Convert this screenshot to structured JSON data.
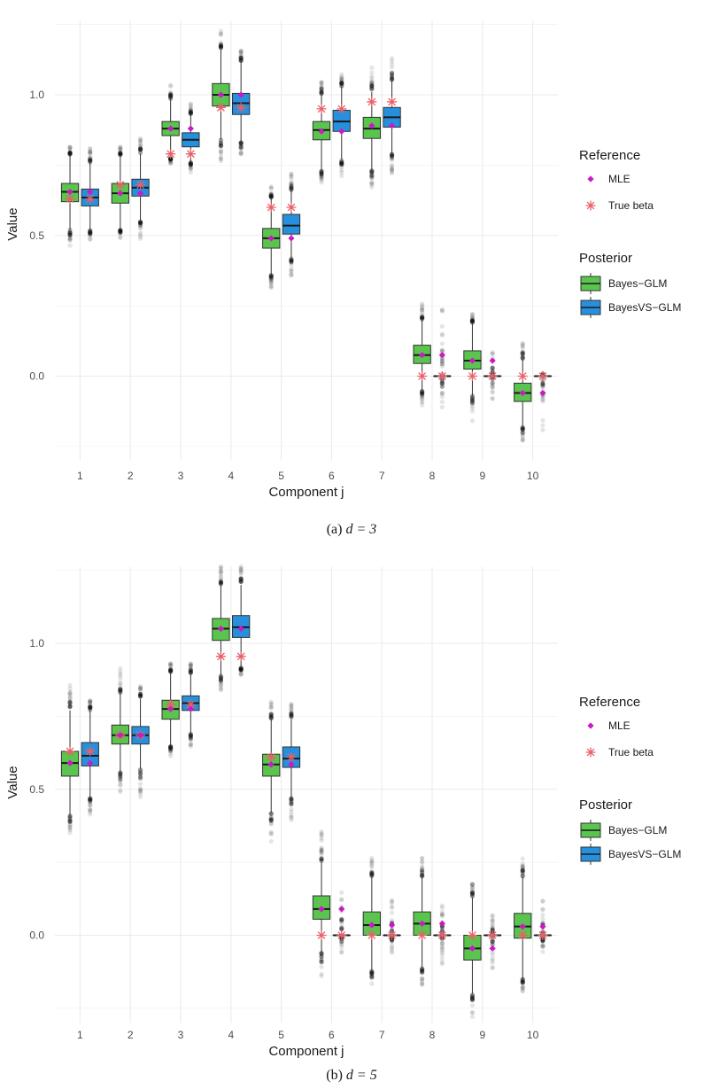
{
  "colors": {
    "bayes_glm": "#5ac44e",
    "bayesvs_glm": "#2790de",
    "mle": "#cc18c6",
    "true_beta": "#e8606a",
    "grid": "#ebebeb",
    "outlier": "#000000"
  },
  "legend": {
    "reference_title": "Reference",
    "mle_label": "MLE",
    "true_beta_label": "True beta",
    "posterior_title": "Posterior",
    "bayes_glm_label": "Bayes−GLM",
    "bayesvs_glm_label": "BayesVS−GLM"
  },
  "chart_data": [
    {
      "type": "boxplot",
      "caption_prefix": "(a) ",
      "caption_math": "d = 3",
      "xlabel": "Component j",
      "ylabel": "Value",
      "categories": [
        "1",
        "2",
        "3",
        "4",
        "5",
        "6",
        "7",
        "8",
        "9",
        "10"
      ],
      "ylim": [
        -0.3,
        1.25
      ],
      "yticks": [
        0.0,
        0.5,
        1.0
      ],
      "ytick_labels": [
        "0.0",
        "0.5",
        "1.0"
      ],
      "grid": true,
      "legend_position": "right",
      "series": [
        {
          "name": "Bayes−GLM",
          "boxes": [
            {
              "q1": 0.62,
              "median": 0.655,
              "q3": 0.685,
              "wlo": 0.52,
              "whi": 0.785,
              "min": 0.455,
              "max": 0.815
            },
            {
              "q1": 0.615,
              "median": 0.65,
              "q3": 0.685,
              "wlo": 0.52,
              "whi": 0.785,
              "min": 0.49,
              "max": 0.815
            },
            {
              "q1": 0.855,
              "median": 0.88,
              "q3": 0.905,
              "wlo": 0.775,
              "whi": 0.985,
              "min": 0.755,
              "max": 1.035
            },
            {
              "q1": 0.96,
              "median": 1.0,
              "q3": 1.04,
              "wlo": 0.84,
              "whi": 1.16,
              "min": 0.75,
              "max": 1.24
            },
            {
              "q1": 0.455,
              "median": 0.49,
              "q3": 0.525,
              "wlo": 0.36,
              "whi": 0.63,
              "min": 0.31,
              "max": 0.68
            },
            {
              "q1": 0.84,
              "median": 0.875,
              "q3": 0.905,
              "wlo": 0.73,
              "whi": 1.0,
              "min": 0.68,
              "max": 1.065
            },
            {
              "q1": 0.845,
              "median": 0.88,
              "q3": 0.92,
              "wlo": 0.73,
              "whi": 1.01,
              "min": 0.67,
              "max": 1.1
            },
            {
              "q1": 0.045,
              "median": 0.075,
              "q3": 0.11,
              "wlo": -0.05,
              "whi": 0.2,
              "min": -0.11,
              "max": 0.275
            },
            {
              "q1": 0.025,
              "median": 0.055,
              "q3": 0.09,
              "wlo": -0.07,
              "whi": 0.19,
              "min": -0.16,
              "max": 0.225
            },
            {
              "q1": -0.09,
              "median": -0.06,
              "q3": -0.025,
              "wlo": -0.18,
              "whi": 0.06,
              "min": -0.24,
              "max": 0.13
            }
          ]
        },
        {
          "name": "BayesVS−GLM",
          "boxes": [
            {
              "q1": 0.605,
              "median": 0.635,
              "q3": 0.665,
              "wlo": 0.52,
              "whi": 0.76,
              "min": 0.48,
              "max": 0.81
            },
            {
              "q1": 0.64,
              "median": 0.67,
              "q3": 0.7,
              "wlo": 0.55,
              "whi": 0.79,
              "min": 0.47,
              "max": 0.85
            },
            {
              "q1": 0.815,
              "median": 0.84,
              "q3": 0.865,
              "wlo": 0.76,
              "whi": 0.93,
              "min": 0.72,
              "max": 0.97
            },
            {
              "q1": 0.93,
              "median": 0.97,
              "q3": 1.005,
              "wlo": 0.83,
              "whi": 1.12,
              "min": 0.78,
              "max": 1.16
            },
            {
              "q1": 0.505,
              "median": 0.535,
              "q3": 0.575,
              "wlo": 0.42,
              "whi": 0.66,
              "min": 0.355,
              "max": 0.72
            },
            {
              "q1": 0.87,
              "median": 0.905,
              "q3": 0.945,
              "wlo": 0.77,
              "whi": 1.03,
              "min": 0.71,
              "max": 1.08
            },
            {
              "q1": 0.885,
              "median": 0.92,
              "q3": 0.955,
              "wlo": 0.79,
              "whi": 1.05,
              "min": 0.72,
              "max": 1.13
            },
            {
              "q1": 0.0,
              "median": 0.0,
              "q3": 0.0,
              "wlo": 0.0,
              "whi": 0.0,
              "min": -0.12,
              "max": 0.26
            },
            {
              "q1": 0.0,
              "median": 0.0,
              "q3": 0.0,
              "wlo": 0.0,
              "whi": 0.0,
              "min": -0.09,
              "max": 0.085
            },
            {
              "q1": 0.0,
              "median": 0.0,
              "q3": 0.0,
              "wlo": 0.0,
              "whi": 0.0,
              "min": -0.2,
              "max": 0.01
            }
          ]
        }
      ],
      "reference": {
        "mle": [
          0.655,
          0.65,
          0.88,
          1.0,
          0.49,
          0.87,
          0.89,
          0.075,
          0.055,
          -0.06
        ],
        "true_beta": [
          0.63,
          0.68,
          0.79,
          0.955,
          0.6,
          0.95,
          0.975,
          0.0,
          0.0,
          0.0
        ]
      }
    },
    {
      "type": "boxplot",
      "caption_prefix": "(b) ",
      "caption_math": "d = 5",
      "xlabel": "Component j",
      "ylabel": "Value",
      "categories": [
        "1",
        "2",
        "3",
        "4",
        "5",
        "6",
        "7",
        "8",
        "9",
        "10"
      ],
      "ylim": [
        -0.3,
        1.25
      ],
      "yticks": [
        0.0,
        0.5,
        1.0
      ],
      "ytick_labels": [
        "0.0",
        "0.5",
        "1.0"
      ],
      "grid": true,
      "legend_position": "right",
      "series": [
        {
          "name": "Bayes−GLM",
          "boxes": [
            {
              "q1": 0.545,
              "median": 0.59,
              "q3": 0.63,
              "wlo": 0.41,
              "whi": 0.77,
              "min": 0.345,
              "max": 0.86
            },
            {
              "q1": 0.655,
              "median": 0.685,
              "q3": 0.72,
              "wlo": 0.56,
              "whi": 0.83,
              "min": 0.48,
              "max": 0.915
            },
            {
              "q1": 0.74,
              "median": 0.775,
              "q3": 0.805,
              "wlo": 0.65,
              "whi": 0.9,
              "min": 0.61,
              "max": 0.935
            },
            {
              "q1": 1.01,
              "median": 1.05,
              "q3": 1.085,
              "wlo": 0.89,
              "whi": 1.2,
              "min": 0.81,
              "max": 1.265
            },
            {
              "q1": 0.545,
              "median": 0.585,
              "q3": 0.62,
              "wlo": 0.42,
              "whi": 0.74,
              "min": 0.32,
              "max": 0.8
            },
            {
              "q1": 0.055,
              "median": 0.09,
              "q3": 0.135,
              "wlo": -0.06,
              "whi": 0.25,
              "min": -0.15,
              "max": 0.37
            },
            {
              "q1": 0.0,
              "median": 0.035,
              "q3": 0.08,
              "wlo": -0.12,
              "whi": 0.2,
              "min": -0.2,
              "max": 0.265
            },
            {
              "q1": 0.0,
              "median": 0.04,
              "q3": 0.08,
              "wlo": -0.11,
              "whi": 0.2,
              "min": -0.17,
              "max": 0.275
            },
            {
              "q1": -0.085,
              "median": -0.045,
              "q3": 0.0,
              "wlo": -0.2,
              "whi": 0.13,
              "min": -0.285,
              "max": 0.18
            },
            {
              "q1": -0.01,
              "median": 0.03,
              "q3": 0.075,
              "wlo": -0.15,
              "whi": 0.2,
              "min": -0.2,
              "max": 0.265
            }
          ]
        },
        {
          "name": "BayesVS−GLM",
          "boxes": [
            {
              "q1": 0.58,
              "median": 0.615,
              "q3": 0.66,
              "wlo": 0.47,
              "whi": 0.77,
              "min": 0.4,
              "max": 0.81
            },
            {
              "q1": 0.655,
              "median": 0.685,
              "q3": 0.715,
              "wlo": 0.57,
              "whi": 0.81,
              "min": 0.47,
              "max": 0.855
            },
            {
              "q1": 0.77,
              "median": 0.795,
              "q3": 0.82,
              "wlo": 0.69,
              "whi": 0.895,
              "min": 0.64,
              "max": 0.935
            },
            {
              "q1": 1.02,
              "median": 1.055,
              "q3": 1.095,
              "wlo": 0.92,
              "whi": 1.2,
              "min": 0.88,
              "max": 1.265
            },
            {
              "q1": 0.575,
              "median": 0.605,
              "q3": 0.645,
              "wlo": 0.47,
              "whi": 0.74,
              "min": 0.39,
              "max": 0.8
            },
            {
              "q1": 0.0,
              "median": 0.0,
              "q3": 0.0,
              "wlo": 0.0,
              "whi": 0.0,
              "min": -0.06,
              "max": 0.17
            },
            {
              "q1": 0.0,
              "median": 0.0,
              "q3": 0.0,
              "wlo": 0.0,
              "whi": 0.0,
              "min": -0.06,
              "max": 0.13
            },
            {
              "q1": 0.0,
              "median": 0.0,
              "q3": 0.0,
              "wlo": 0.0,
              "whi": 0.0,
              "min": -0.1,
              "max": 0.11
            },
            {
              "q1": 0.0,
              "median": 0.0,
              "q3": 0.0,
              "wlo": 0.0,
              "whi": 0.0,
              "min": -0.13,
              "max": 0.07
            },
            {
              "q1": 0.0,
              "median": 0.0,
              "q3": 0.0,
              "wlo": 0.0,
              "whi": 0.0,
              "min": -0.06,
              "max": 0.12
            }
          ]
        }
      ],
      "reference": {
        "mle": [
          0.59,
          0.685,
          0.775,
          1.05,
          0.585,
          0.09,
          0.035,
          0.04,
          -0.045,
          0.03
        ],
        "true_beta": [
          0.63,
          0.685,
          0.79,
          0.955,
          0.61,
          0.0,
          0.0,
          0.0,
          0.0,
          0.0
        ]
      }
    }
  ]
}
